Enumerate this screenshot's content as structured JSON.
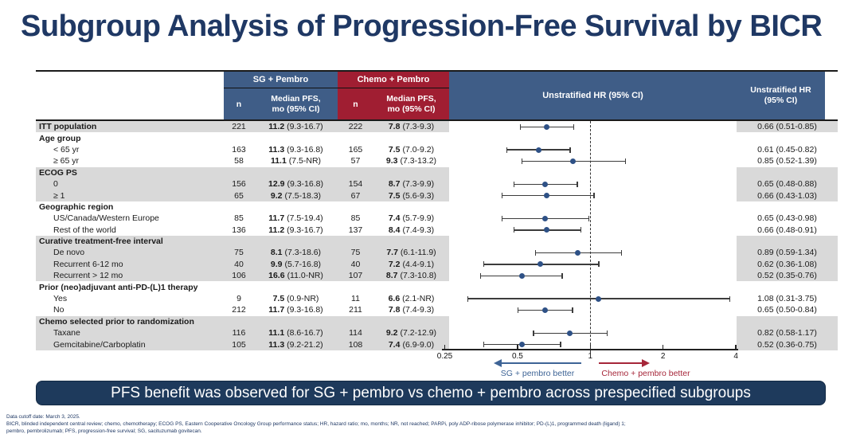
{
  "slide": {
    "title": "Subgroup Analysis of Progression-Free Survival by BICR",
    "banner": "PFS benefit was observed for SG + pembro vs chemo + pembro across prespecified subgroups",
    "footnotes": [
      "Data cutoff date: March 3, 2025.",
      "BICR, blinded independent central review; chemo, chemotherapy; ECOG PS, Eastern Cooperative Oncology Group performance status; HR, hazard ratio; mo, months; NR, not reached; PARPi, poly ADP-ribose polymerase inhibitor; PD-(L)1, programmed death (ligand) 1;",
      "pembro, pembrolizumab; PFS, progression-free survival; SG, sacituzumab govitecan."
    ]
  },
  "table": {
    "group1_header": "SG + Pembro",
    "group2_header": "Chemo + Pembro",
    "col_n": "n",
    "col_median": "Median PFS,\nmo (95% CI)",
    "plot_header": "Unstratified HR (95% CI)",
    "hr_col_header": "Unstratified HR\n(95% CI)"
  },
  "colors": {
    "navy": "#1f3864",
    "header_blue": "#3f5d87",
    "header_red": "#a01e32",
    "row_shade": "#d9d9d9",
    "dot_blue": "#2e5186",
    "arrow_blue": "#3e6496",
    "arrow_red": "#a62639",
    "banner_navy": "#1e3a5c"
  },
  "chart_data": {
    "type": "forest",
    "x_axis": {
      "scale": "log2",
      "ticks": [
        0.25,
        0.5,
        1,
        2,
        4
      ],
      "tick_labels": [
        "0.25",
        "0.5",
        "1",
        "2",
        "4"
      ],
      "reference_line": 1
    },
    "better_left": "SG + pembro better",
    "better_right": "Chemo + pembro better",
    "rows": [
      {
        "kind": "item",
        "label": "ITT population",
        "bold": true,
        "indent": false,
        "shaded": true,
        "n_sg": "221",
        "med_sg": "11.2",
        "ci_sg": "(9.3-16.7)",
        "n_ch": "222",
        "med_ch": "7.8",
        "ci_ch": "(7.3-9.3)",
        "hr": 0.66,
        "lo": 0.51,
        "hi": 0.85,
        "hr_text": "0.66 (0.51-0.85)"
      },
      {
        "kind": "group",
        "label": "Age group",
        "shaded": false
      },
      {
        "kind": "item",
        "label": "< 65 yr",
        "indent": true,
        "shaded": false,
        "n_sg": "163",
        "med_sg": "11.3",
        "ci_sg": "(9.3-16.8)",
        "n_ch": "165",
        "med_ch": "7.5",
        "ci_ch": "(7.0-9.2)",
        "hr": 0.61,
        "lo": 0.45,
        "hi": 0.82,
        "hr_text": "0.61 (0.45-0.82)"
      },
      {
        "kind": "item",
        "label": "≥ 65 yr",
        "indent": true,
        "shaded": false,
        "n_sg": "58",
        "med_sg": "11.1",
        "ci_sg": "(7.5-NR)",
        "n_ch": "57",
        "med_ch": "9.3",
        "ci_ch": "(7.3-13.2)",
        "hr": 0.85,
        "lo": 0.52,
        "hi": 1.39,
        "hr_text": "0.85 (0.52-1.39)"
      },
      {
        "kind": "group",
        "label": "ECOG PS",
        "shaded": true
      },
      {
        "kind": "item",
        "label": "0",
        "indent": true,
        "shaded": true,
        "n_sg": "156",
        "med_sg": "12.9",
        "ci_sg": "(9.3-16.8)",
        "n_ch": "154",
        "med_ch": "8.7",
        "ci_ch": "(7.3-9.9)",
        "hr": 0.65,
        "lo": 0.48,
        "hi": 0.88,
        "hr_text": "0.65 (0.48-0.88)"
      },
      {
        "kind": "item",
        "label": "≥ 1",
        "indent": true,
        "shaded": true,
        "n_sg": "65",
        "med_sg": "9.2",
        "ci_sg": "(7.5-18.3)",
        "n_ch": "67",
        "med_ch": "7.5",
        "ci_ch": "(5.6-9.3)",
        "hr": 0.66,
        "lo": 0.43,
        "hi": 1.03,
        "hr_text": "0.66 (0.43-1.03)"
      },
      {
        "kind": "group",
        "label": "Geographic region",
        "shaded": false
      },
      {
        "kind": "item",
        "label": "US/Canada/Western Europe",
        "indent": true,
        "shaded": false,
        "n_sg": "85",
        "med_sg": "11.7",
        "ci_sg": "(7.5-19.4)",
        "n_ch": "85",
        "med_ch": "7.4",
        "ci_ch": "(5.7-9.9)",
        "hr": 0.65,
        "lo": 0.43,
        "hi": 0.98,
        "hr_text": "0.65 (0.43-0.98)"
      },
      {
        "kind": "item",
        "label": "Rest of the world",
        "indent": true,
        "shaded": false,
        "n_sg": "136",
        "med_sg": "11.2",
        "ci_sg": "(9.3-16.7)",
        "n_ch": "137",
        "med_ch": "8.4",
        "ci_ch": "(7.4-9.3)",
        "hr": 0.66,
        "lo": 0.48,
        "hi": 0.91,
        "hr_text": "0.66 (0.48-0.91)"
      },
      {
        "kind": "group",
        "label": "Curative treatment-free interval",
        "shaded": true
      },
      {
        "kind": "item",
        "label": "De novo",
        "indent": true,
        "shaded": true,
        "n_sg": "75",
        "med_sg": "8.1",
        "ci_sg": "(7.3-18.6)",
        "n_ch": "75",
        "med_ch": "7.7",
        "ci_ch": "(6.1-11.9)",
        "hr": 0.89,
        "lo": 0.59,
        "hi": 1.34,
        "hr_text": "0.89 (0.59-1.34)"
      },
      {
        "kind": "item",
        "label": "Recurrent 6-12 mo",
        "indent": true,
        "shaded": true,
        "n_sg": "40",
        "med_sg": "9.9",
        "ci_sg": "(5.7-16.8)",
        "n_ch": "40",
        "med_ch": "7.2",
        "ci_ch": "(4.4-9.1)",
        "hr": 0.62,
        "lo": 0.36,
        "hi": 1.08,
        "hr_text": "0.62 (0.36-1.08)"
      },
      {
        "kind": "item",
        "label": "Recurrent > 12 mo",
        "indent": true,
        "shaded": true,
        "n_sg": "106",
        "med_sg": "16.6",
        "ci_sg": "(11.0-NR)",
        "n_ch": "107",
        "med_ch": "8.7",
        "ci_ch": "(7.3-10.8)",
        "hr": 0.52,
        "lo": 0.35,
        "hi": 0.76,
        "hr_text": "0.52 (0.35-0.76)"
      },
      {
        "kind": "group",
        "label": "Prior (neo)adjuvant anti-PD-(L)1 therapy",
        "shaded": false
      },
      {
        "kind": "item",
        "label": "Yes",
        "indent": true,
        "shaded": false,
        "n_sg": "9",
        "med_sg": "7.5",
        "ci_sg": "(0.9-NR)",
        "n_ch": "11",
        "med_ch": "6.6",
        "ci_ch": "(2.1-NR)",
        "hr": 1.08,
        "lo": 0.31,
        "hi": 3.75,
        "hr_text": "1.08 (0.31-3.75)"
      },
      {
        "kind": "item",
        "label": "No",
        "indent": true,
        "shaded": false,
        "n_sg": "212",
        "med_sg": "11.7",
        "ci_sg": "(9.3-16.8)",
        "n_ch": "211",
        "med_ch": "7.8",
        "ci_ch": "(7.4-9.3)",
        "hr": 0.65,
        "lo": 0.5,
        "hi": 0.84,
        "hr_text": "0.65 (0.50-0.84)"
      },
      {
        "kind": "group",
        "label": "Chemo selected prior to randomization",
        "shaded": true
      },
      {
        "kind": "item",
        "label": "Taxane",
        "indent": true,
        "shaded": true,
        "n_sg": "116",
        "med_sg": "11.1",
        "ci_sg": "(8.6-16.7)",
        "n_ch": "114",
        "med_ch": "9.2",
        "ci_ch": "(7.2-12.9)",
        "hr": 0.82,
        "lo": 0.58,
        "hi": 1.17,
        "hr_text": "0.82 (0.58-1.17)"
      },
      {
        "kind": "item",
        "label": "Gemcitabine/Carboplatin",
        "indent": true,
        "shaded": true,
        "n_sg": "105",
        "med_sg": "11.3",
        "ci_sg": "(9.2-21.2)",
        "n_ch": "108",
        "med_ch": "7.4",
        "ci_ch": "(6.9-9.0)",
        "hr": 0.52,
        "lo": 0.36,
        "hi": 0.75,
        "hr_text": "0.52 (0.36-0.75)"
      }
    ]
  }
}
